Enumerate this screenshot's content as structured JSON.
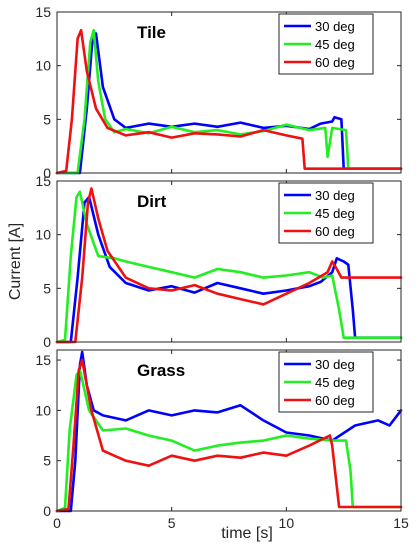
{
  "colors": {
    "30 deg": "#0000ff",
    "45 deg": "#22ee22",
    "60 deg": "#ee1111"
  },
  "chart_data": {
    "type": "line",
    "xlabel": "time [s]",
    "ylabel": "Current [A]",
    "xlim": [
      0,
      15
    ],
    "xticks": [
      0,
      5,
      10,
      15
    ],
    "legend_placement": "top-right",
    "panels": [
      {
        "title": "Tile",
        "ylim": [
          0,
          15
        ],
        "yticks": [
          0,
          5,
          10,
          15
        ],
        "series": [
          {
            "name": "30 deg",
            "x": [
              0,
              1.0,
              1.3,
              1.55,
              1.7,
              2.0,
              2.5,
              3,
              4,
              5,
              6,
              7,
              8,
              9,
              10,
              11,
              11.5,
              12,
              12.1,
              12.4,
              12.5,
              13,
              15
            ],
            "y": [
              0,
              0,
              6,
              12.5,
              13.0,
              8,
              5.0,
              4.2,
              4.6,
              4.3,
              4.6,
              4.3,
              4.7,
              4.2,
              4.4,
              4.1,
              4.6,
              4.8,
              5.2,
              5.0,
              0.4,
              0.4,
              0.4
            ]
          },
          {
            "name": "45 deg",
            "x": [
              0,
              0.9,
              1.2,
              1.45,
              1.6,
              1.8,
              2.1,
              2.5,
              3,
              4,
              5,
              6,
              7,
              8,
              9,
              10,
              11,
              11.7,
              11.8,
              12,
              12.6,
              12.7,
              15
            ],
            "y": [
              0,
              0,
              5,
              12.2,
              13.3,
              8.5,
              5.0,
              3.8,
              4.1,
              3.7,
              4.3,
              3.8,
              4.0,
              3.6,
              3.9,
              4.5,
              4.0,
              4.2,
              1.5,
              4.2,
              4.0,
              0.4,
              0.4
            ]
          },
          {
            "name": "60 deg",
            "x": [
              0,
              0.4,
              0.65,
              0.9,
              1.05,
              1.3,
              1.7,
              2.2,
              3,
              4,
              5,
              6,
              7,
              8,
              9,
              10,
              10.7,
              10.8,
              11,
              15
            ],
            "y": [
              0,
              0.2,
              5,
              12.5,
              13.3,
              9.5,
              6.0,
              4.2,
              3.5,
              3.8,
              3.3,
              3.7,
              3.6,
              3.4,
              4.0,
              3.5,
              3.2,
              0.4,
              0.4,
              0.4
            ]
          }
        ]
      },
      {
        "title": "Dirt",
        "ylim": [
          0,
          15
        ],
        "yticks": [
          0,
          5,
          10,
          15
        ],
        "series": [
          {
            "name": "30 deg",
            "x": [
              0,
              0.6,
              0.9,
              1.2,
              1.4,
              1.8,
              2.3,
              3,
              4,
              5,
              6,
              7,
              8,
              9,
              10,
              11,
              11.5,
              12,
              12.2,
              12.5,
              12.7,
              12.9,
              13.0,
              15
            ],
            "y": [
              0,
              0,
              6,
              13.0,
              13.5,
              10,
              7.0,
              5.5,
              4.8,
              5.2,
              4.6,
              5.5,
              5.0,
              4.5,
              4.8,
              5.2,
              5.6,
              6.5,
              7.8,
              7.5,
              7.2,
              3.0,
              0.4,
              0.4
            ]
          },
          {
            "name": "45 deg",
            "x": [
              0,
              0.35,
              0.6,
              0.85,
              1.0,
              1.3,
              1.8,
              2.5,
              3,
              4,
              5,
              6,
              7,
              8,
              9,
              10,
              11,
              11.6,
              12,
              12.3,
              12.5,
              15
            ],
            "y": [
              0,
              0.2,
              8,
              13.5,
              14.0,
              11,
              8.0,
              7.8,
              7.5,
              7.0,
              6.5,
              6.0,
              6.8,
              6.5,
              6.0,
              6.2,
              6.5,
              6.0,
              6.2,
              3.0,
              0.4,
              0.4
            ]
          },
          {
            "name": "60 deg",
            "x": [
              0,
              0.8,
              1.1,
              1.35,
              1.5,
              1.8,
              2.2,
              3,
              4,
              5,
              6,
              7,
              8,
              9,
              10,
              11,
              11.8,
              12.0,
              12.2,
              12.4,
              15
            ],
            "y": [
              0,
              0,
              6,
              13.0,
              14.3,
              11.5,
              8.5,
              6.0,
              5.0,
              4.8,
              5.3,
              4.5,
              4.0,
              3.5,
              4.5,
              5.5,
              6.5,
              7.5,
              6.8,
              6.0,
              6.0
            ]
          }
        ]
      },
      {
        "title": "Grass",
        "ylim": [
          0,
          16
        ],
        "yticks": [
          0,
          5,
          10,
          15
        ],
        "series": [
          {
            "name": "30 deg",
            "x": [
              0,
              0.6,
              0.8,
              1.0,
              1.1,
              1.3,
              1.6,
              2,
              3,
              4,
              5,
              6,
              7,
              8,
              9,
              10,
              11,
              12,
              13,
              14,
              14.5,
              15
            ],
            "y": [
              0,
              0,
              5,
              14.5,
              15.8,
              12.5,
              10.0,
              9.5,
              9.0,
              10.0,
              9.5,
              10.0,
              9.8,
              10.5,
              9.0,
              7.8,
              7.5,
              7.0,
              8.5,
              9.0,
              8.5,
              10.0
            ]
          },
          {
            "name": "45 deg",
            "x": [
              0,
              0.35,
              0.55,
              0.85,
              1.0,
              1.4,
              2,
              3,
              4,
              5,
              6,
              7,
              8,
              9,
              10,
              11,
              12,
              12.6,
              12.8,
              12.9,
              15
            ],
            "y": [
              0,
              0.3,
              8,
              13.5,
              14.0,
              10.0,
              8.0,
              8.2,
              7.5,
              7.0,
              6.0,
              6.5,
              6.8,
              7.0,
              7.5,
              7.2,
              7.0,
              7.0,
              4.0,
              0.4,
              0.4
            ]
          },
          {
            "name": "60 deg",
            "x": [
              0,
              0.5,
              0.7,
              0.95,
              1.1,
              1.5,
              2,
              2.5,
              3,
              4,
              5,
              6,
              7,
              8,
              9,
              10,
              11,
              11.9,
              12.0,
              12.3,
              15
            ],
            "y": [
              0,
              0.2,
              6,
              14.0,
              15.0,
              10.0,
              6.0,
              5.5,
              5.0,
              4.5,
              5.5,
              5.0,
              5.5,
              5.3,
              5.8,
              5.5,
              6.5,
              7.5,
              6.5,
              0.4,
              0.4
            ]
          }
        ]
      }
    ]
  }
}
